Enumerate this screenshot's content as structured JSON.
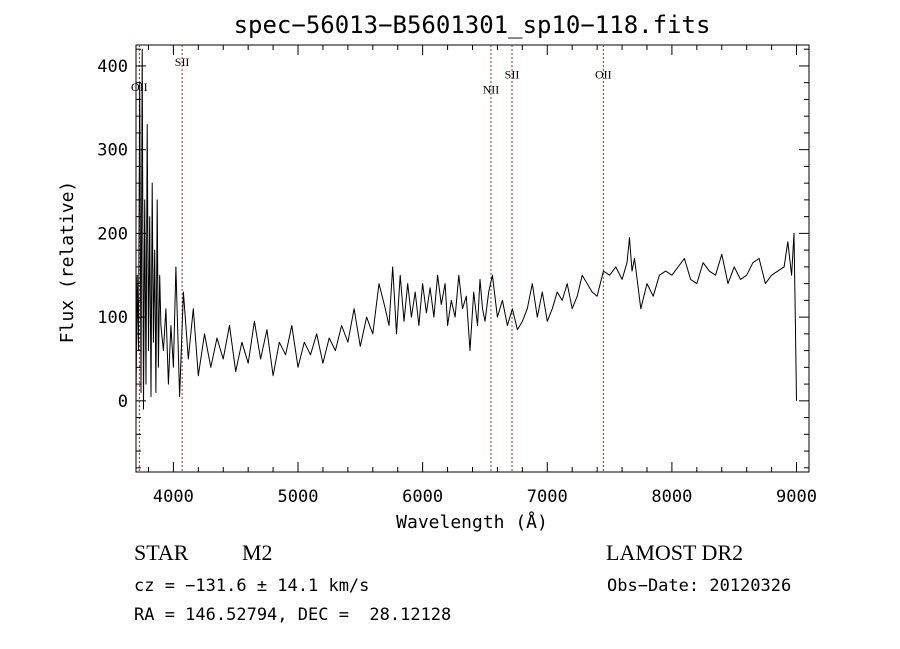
{
  "chart_data": {
    "type": "line",
    "title": "spec−56013−B5601301_sp10−118.fits",
    "xlabel": "Wavelength (Å)",
    "ylabel": "Flux (relative)",
    "xlim": [
      3700,
      9100
    ],
    "ylim": [
      -85,
      425
    ],
    "x_ticks": [
      4000,
      5000,
      6000,
      7000,
      8000,
      9000
    ],
    "y_ticks": [
      0,
      100,
      200,
      300,
      400
    ],
    "grid": false,
    "line_color": "#000000",
    "line_marker_color": "#b22222",
    "lines": [
      {
        "label": "OII",
        "x": 3727,
        "label_y": 370
      },
      {
        "label": "SII",
        "x": 4070,
        "label_y": 400
      },
      {
        "label": "NII",
        "x": 6548,
        "label_y": 367
      },
      {
        "label": "SII",
        "x": 6717,
        "label_y": 385
      },
      {
        "label": "OII",
        "x": 7450,
        "label_y": 385
      }
    ],
    "series": [
      {
        "x": [
          3700,
          3710,
          3720,
          3730,
          3740,
          3750,
          3760,
          3770,
          3780,
          3790,
          3800,
          3810,
          3820,
          3830,
          3840,
          3850,
          3860,
          3870,
          3880,
          3890,
          3900,
          3920,
          3940,
          3960,
          3980,
          4000,
          4020,
          4050,
          4080,
          4120,
          4160,
          4200,
          4250,
          4300,
          4350,
          4400,
          4450,
          4500,
          4550,
          4600,
          4650,
          4700,
          4750,
          4800,
          4850,
          4900,
          4950,
          5000,
          5050,
          5100,
          5150,
          5200,
          5250,
          5300,
          5350,
          5400,
          5450,
          5500,
          5550,
          5600,
          5650,
          5700,
          5730,
          5760,
          5790,
          5820,
          5850,
          5880,
          5910,
          5940,
          5970,
          6000,
          6030,
          6060,
          6090,
          6120,
          6150,
          6180,
          6200,
          6230,
          6260,
          6290,
          6320,
          6350,
          6380,
          6410,
          6440,
          6460,
          6480,
          6500,
          6530,
          6560,
          6600,
          6640,
          6680,
          6720,
          6760,
          6800,
          6840,
          6880,
          6920,
          6960,
          7000,
          7040,
          7080,
          7120,
          7160,
          7200,
          7240,
          7280,
          7320,
          7360,
          7400,
          7450,
          7500,
          7550,
          7600,
          7640,
          7660,
          7680,
          7700,
          7750,
          7800,
          7850,
          7900,
          7950,
          8000,
          8050,
          8100,
          8150,
          8200,
          8250,
          8300,
          8350,
          8400,
          8450,
          8500,
          8550,
          8600,
          8650,
          8700,
          8750,
          8800,
          8850,
          8900,
          8930,
          8960,
          8980,
          8990,
          9000
        ],
        "y": [
          0,
          150,
          60,
          380,
          10,
          420,
          -10,
          240,
          20,
          330,
          60,
          220,
          5,
          260,
          70,
          180,
          10,
          240,
          40,
          150,
          90,
          60,
          110,
          20,
          90,
          40,
          160,
          5,
          130,
          50,
          110,
          30,
          80,
          40,
          75,
          50,
          90,
          35,
          70,
          45,
          95,
          50,
          85,
          30,
          70,
          55,
          90,
          40,
          70,
          55,
          80,
          45,
          75,
          60,
          90,
          70,
          110,
          65,
          100,
          80,
          140,
          110,
          90,
          160,
          80,
          150,
          95,
          140,
          100,
          130,
          90,
          140,
          105,
          135,
          100,
          150,
          115,
          140,
          90,
          120,
          100,
          150,
          110,
          125,
          60,
          130,
          90,
          145,
          110,
          95,
          130,
          150,
          100,
          120,
          90,
          110,
          85,
          95,
          110,
          140,
          100,
          130,
          95,
          110,
          130,
          120,
          140,
          110,
          125,
          150,
          140,
          130,
          125,
          155,
          150,
          160,
          145,
          165,
          195,
          155,
          170,
          110,
          140,
          125,
          150,
          155,
          150,
          160,
          170,
          145,
          140,
          165,
          155,
          150,
          175,
          140,
          160,
          145,
          150,
          165,
          170,
          140,
          150,
          155,
          160,
          190,
          150,
          200,
          100,
          0
        ]
      }
    ],
    "info": {
      "object": "STAR",
      "subclass": "M2",
      "survey": "LAMOST DR2",
      "cz": "cz = −131.6 ± 14.1 km/s",
      "obs_date": "Obs−Date: 20120326",
      "radec": "RA = 146.52794, DEC =  28.12128"
    }
  }
}
